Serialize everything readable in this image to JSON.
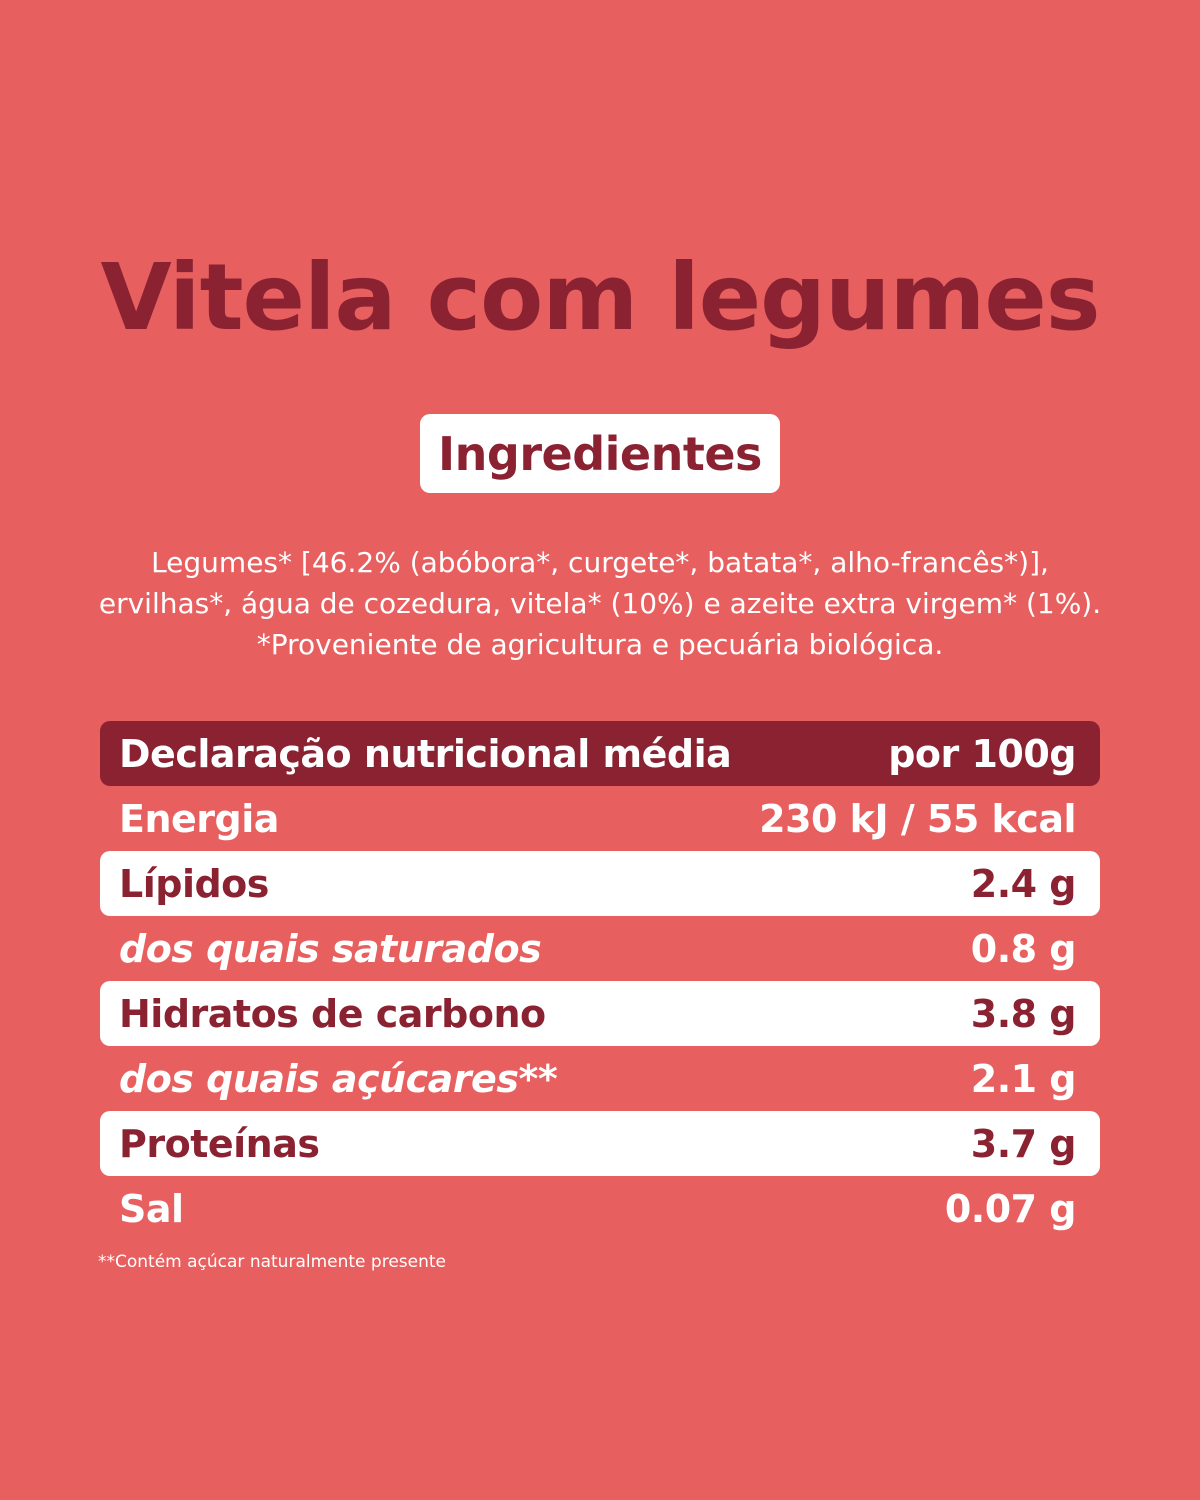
{
  "title": "Vitela com legumes",
  "ingredients_heading": "Ingredientes",
  "ingredients_lines": [
    "Legumes* [46.2% (abóbora*, curgete*, batata*, alho-francês*)],",
    "ervilhas*, água de cozedura, vitela* (10%) e azeite extra virgem* (1%).",
    "*Proveniente de agricultura e pecuária biológica."
  ],
  "nutrition": {
    "header_label": "Declaração nutricional média",
    "header_value": "por 100g",
    "rows": [
      {
        "label": "Energia",
        "value": "230 kJ / 55 kcal"
      },
      {
        "label": "Lípidos",
        "value": "2.4 g"
      },
      {
        "label": "dos quais saturados",
        "value": "0.8 g"
      },
      {
        "label": "Hidratos de carbono",
        "value": "3.8 g"
      },
      {
        "label": "dos quais açúcares**",
        "value": "2.1 g"
      },
      {
        "label": "Proteínas",
        "value": "3.7 g"
      },
      {
        "label": "Sal",
        "value": "0.07 g"
      }
    ]
  },
  "footnote": "**Contém açúcar naturalmente presente",
  "colors": {
    "background": "#e85f5f",
    "accent": "#8b2232",
    "white": "#ffffff"
  }
}
